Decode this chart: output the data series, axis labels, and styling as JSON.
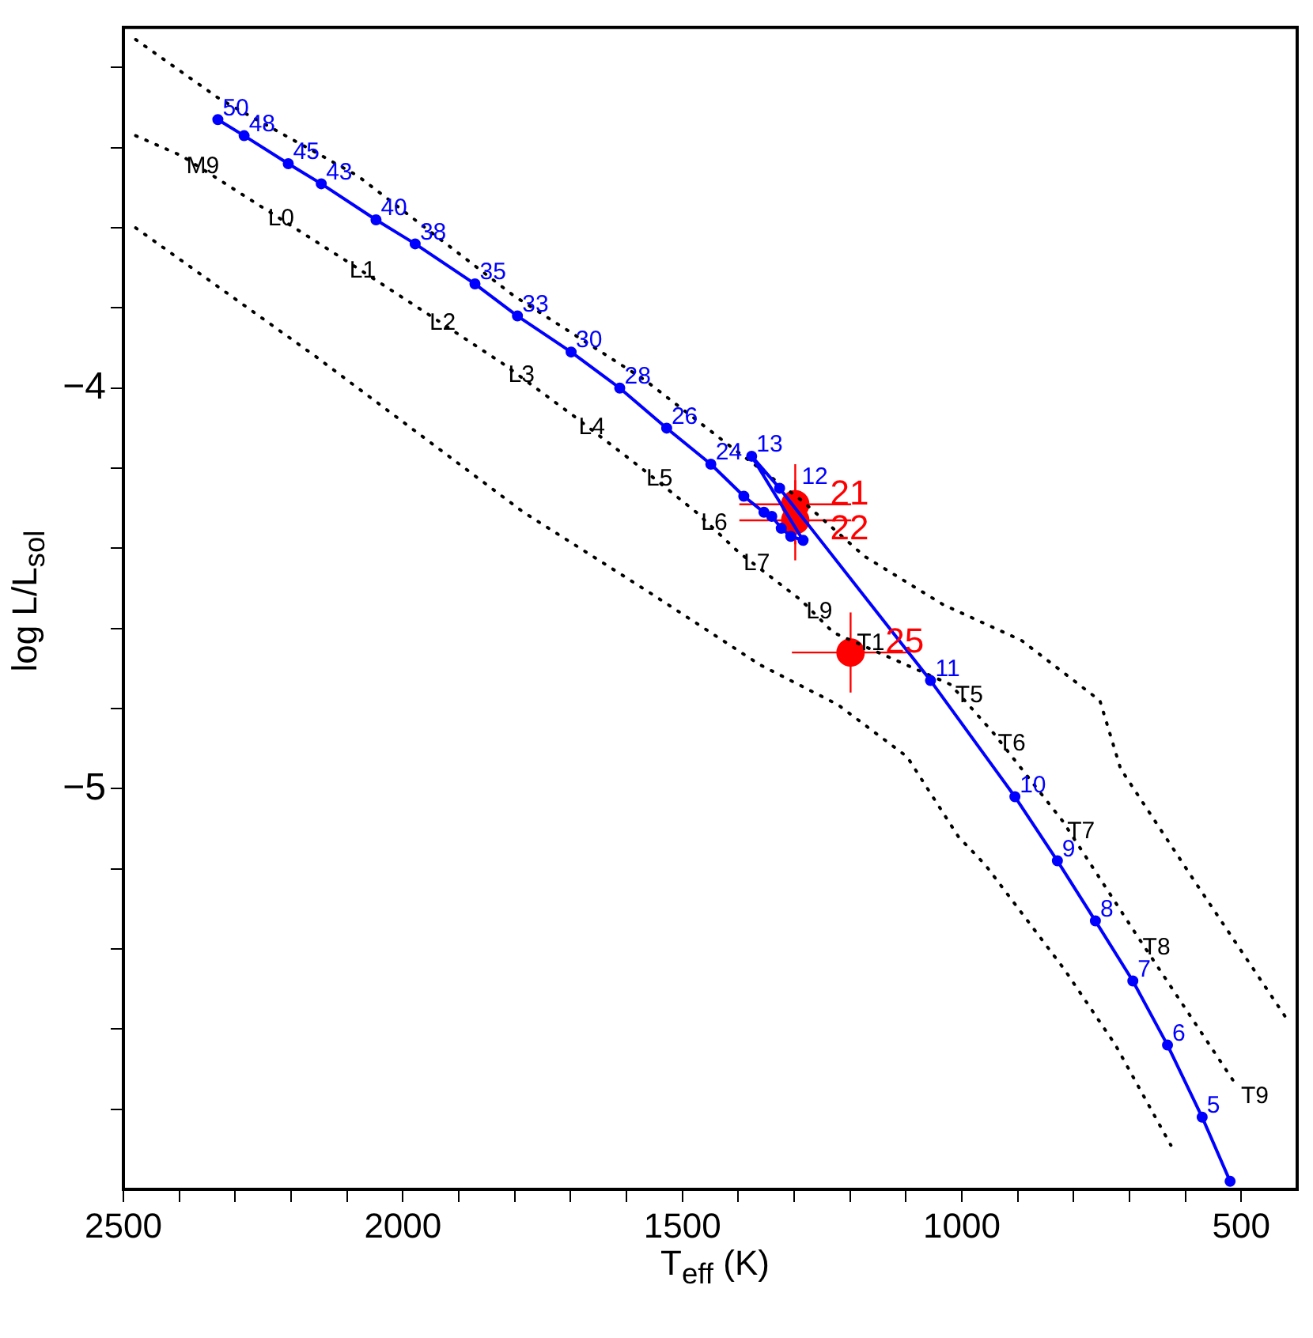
{
  "chart_data": {
    "type": "line",
    "xlabel": "T$_{eff}$ (K)",
    "ylabel": "log L/L$_{sol}$",
    "xlim": [
      2500,
      400
    ],
    "ylim": [
      -6,
      -3.1
    ],
    "xticks": [
      2500,
      {
        "value": 2400,
        "label": null
      },
      {
        "value": 2300,
        "label": null
      },
      {
        "value": 2200,
        "label": null
      },
      {
        "value": 2100,
        "label": null
      },
      2000,
      {
        "value": 1900,
        "label": null
      },
      {
        "value": 1800,
        "label": null
      },
      {
        "value": 1700,
        "label": null
      },
      {
        "value": 1600,
        "label": null
      },
      1500,
      {
        "value": 1400,
        "label": null
      },
      {
        "value": 1300,
        "label": null
      },
      {
        "value": 1200,
        "label": null
      },
      {
        "value": 1100,
        "label": null
      },
      1000,
      {
        "value": 900,
        "label": null
      },
      {
        "value": 800,
        "label": null
      },
      {
        "value": 700,
        "label": null
      },
      {
        "value": 600,
        "label": null
      },
      500
    ],
    "yticks": [
      {
        "value": -3.2,
        "label": null
      },
      {
        "value": -3.4,
        "label": null
      },
      {
        "value": -3.6,
        "label": null
      },
      {
        "value": -3.8,
        "label": null
      },
      -4,
      {
        "value": -4.2,
        "label": null
      },
      {
        "value": -4.4,
        "label": null
      },
      {
        "value": -4.6,
        "label": null
      },
      {
        "value": -4.8,
        "label": null
      },
      -5,
      {
        "value": -5.2,
        "label": null
      },
      {
        "value": -5.4,
        "label": null
      },
      {
        "value": -5.6,
        "label": null
      },
      {
        "value": -5.8,
        "label": null
      }
    ],
    "series": [
      {
        "type": "line",
        "color": "#0000ff",
        "marker": "circle",
        "line_style": "solid",
        "x": [
          2331,
          2284,
          2205,
          2146,
          2048,
          1978,
          1871,
          1795,
          1699,
          1612,
          1528,
          1449,
          1390,
          1354,
          1340,
          1323,
          1306,
          1284,
          1376,
          1326,
          1056,
          905,
          829,
          761,
          694,
          632,
          570,
          520
        ],
        "values": [
          -3.33,
          -3.37,
          -3.44,
          -3.49,
          -3.58,
          -3.64,
          -3.74,
          -3.82,
          -3.91,
          -4.0,
          -4.1,
          -4.19,
          -4.27,
          -4.31,
          -4.32,
          -4.35,
          -4.37,
          -4.38,
          -4.17,
          -4.25,
          -4.73,
          -5.02,
          -5.18,
          -5.33,
          -5.48,
          -5.64,
          -5.82,
          -5.98
        ]
      },
      {
        "type": "line",
        "color": "#000000",
        "marker": "none",
        "line_style": "dotted",
        "x": [
          2478,
          2326,
          2081,
          1801,
          1567,
          1419,
          1287,
          1174,
          1034,
          893,
          753,
          716,
          584,
          416
        ],
        "values": [
          -3.13,
          -3.28,
          -3.47,
          -3.77,
          -3.98,
          -4.14,
          -4.28,
          -4.42,
          -4.54,
          -4.63,
          -4.78,
          -4.95,
          -5.23,
          -5.58
        ]
      },
      {
        "type": "line",
        "color": "#000000",
        "marker": "none",
        "line_style": "dotted",
        "x": [
          2478,
          2396,
          2250,
          2104,
          1961,
          1820,
          1694,
          1573,
          1475,
          1399,
          1287,
          1230,
          1020,
          944,
          820,
          685,
          509
        ],
        "values": [
          -3.37,
          -3.42,
          -3.55,
          -3.68,
          -3.81,
          -3.94,
          -4.07,
          -4.2,
          -4.31,
          -4.41,
          -4.53,
          -4.61,
          -4.74,
          -4.86,
          -5.08,
          -5.37,
          -5.74
        ]
      },
      {
        "type": "line",
        "color": "#000000",
        "marker": "none",
        "line_style": "dotted",
        "x": [
          2478,
          2157,
          1784,
          1559,
          1362,
          1222,
          1098,
          1006,
          958,
          817,
          725,
          626
        ],
        "values": [
          -3.6,
          -3.92,
          -4.31,
          -4.51,
          -4.69,
          -4.79,
          -4.92,
          -5.12,
          -5.19,
          -5.45,
          -5.64,
          -5.89
        ]
      },
      {
        "type": "scatter",
        "color": "#ff0000",
        "marker": "circle",
        "x": [
          1298,
          1298,
          1199
        ],
        "values": [
          -4.29,
          -4.33,
          -4.66
        ],
        "errors": [
          0.1,
          0.1,
          0.1
        ],
        "xerrors": [
          100,
          100,
          105
        ]
      }
    ],
    "annotations": [
      {
        "text": "50",
        "x": 2331,
        "y": -3.33
      },
      {
        "text": "48",
        "x": 2284,
        "y": -3.37
      },
      {
        "text": "45",
        "x": 2205,
        "y": -3.44
      },
      {
        "text": "43",
        "x": 2146,
        "y": -3.49
      },
      {
        "text": "40",
        "x": 2048,
        "y": -3.58
      },
      {
        "text": "38",
        "x": 1978,
        "y": -3.64
      },
      {
        "text": "35",
        "x": 1871,
        "y": -3.74
      },
      {
        "text": "33",
        "x": 1795,
        "y": -3.82
      },
      {
        "text": "30",
        "x": 1699,
        "y": -3.91
      },
      {
        "text": "28",
        "x": 1612,
        "y": -4.0
      },
      {
        "text": "26",
        "x": 1528,
        "y": -4.1
      },
      {
        "text": "24",
        "x": 1449,
        "y": -4.19
      },
      {
        "text": "13",
        "x": 1376,
        "y": -4.17
      },
      {
        "text": "12",
        "x": 1326,
        "y": -4.25
      },
      {
        "text": "11",
        "x": 1056,
        "y": -4.73
      },
      {
        "text": "10",
        "x": 905,
        "y": -5.02
      },
      {
        "text": "9",
        "x": 829,
        "y": -5.18
      },
      {
        "text": "8",
        "x": 761,
        "y": -5.33
      },
      {
        "text": "7",
        "x": 694,
        "y": -5.48
      },
      {
        "text": "6",
        "x": 632,
        "y": -5.64
      },
      {
        "text": "5",
        "x": 570,
        "y": -5.82
      },
      {
        "text": "M9",
        "x": 2396,
        "y": -3.42
      },
      {
        "text": "L0",
        "x": 2250,
        "y": -3.55
      },
      {
        "text": "L1",
        "x": 2104,
        "y": -3.68
      },
      {
        "text": "L2",
        "x": 1961,
        "y": -3.81
      },
      {
        "text": "L3",
        "x": 1820,
        "y": -3.94
      },
      {
        "text": "L4",
        "x": 1694,
        "y": -4.07
      },
      {
        "text": "L5",
        "x": 1573,
        "y": -4.2
      },
      {
        "text": "L6",
        "x": 1475,
        "y": -4.31
      },
      {
        "text": "L7",
        "x": 1399,
        "y": -4.41
      },
      {
        "text": "L9",
        "x": 1287,
        "y": -4.53
      },
      {
        "text": "T1",
        "x": 1230,
        "y": -4.61
      },
      {
        "text": "T5",
        "x": 1020,
        "y": -4.74
      },
      {
        "text": "T6",
        "x": 944,
        "y": -4.86
      },
      {
        "text": "T7",
        "x": 820,
        "y": -5.08
      },
      {
        "text": "T8",
        "x": 685,
        "y": -5.37
      },
      {
        "text": "T9",
        "x": 509,
        "y": -5.74
      },
      {
        "text": "21",
        "x": 1298,
        "y": -4.29
      },
      {
        "text": "22",
        "x": 1298,
        "y": -4.33
      },
      {
        "text": "25",
        "x": 1199,
        "y": -4.66
      }
    ]
  }
}
